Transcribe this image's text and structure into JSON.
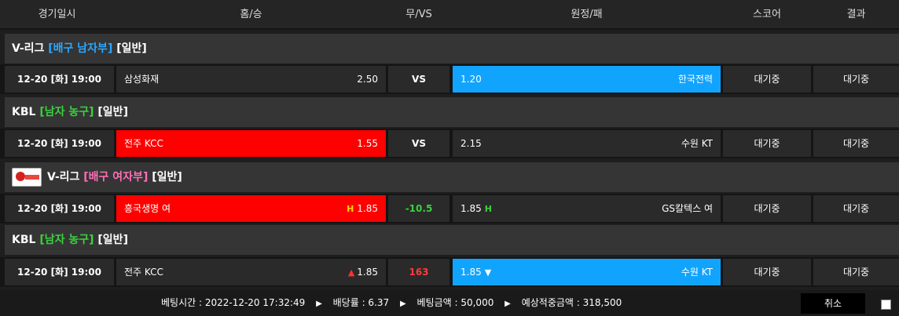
{
  "header": {
    "time": "경기일시",
    "home": "홈/승",
    "draw": "무/VS",
    "away": "원정/패",
    "score": "스코어",
    "result": "결과"
  },
  "groups": [
    {
      "league_main": "V-리그",
      "league_cat": "[배구 남자부]",
      "league_type": "[일반]",
      "game": {
        "time": "12-20 [화] 19:00",
        "home_team": "삼성화재",
        "home_odd": "2.50",
        "draw": "VS",
        "away_odd": "1.20",
        "away_team": "한국전력",
        "score": "대기중",
        "result": "대기중"
      }
    },
    {
      "league_main": "KBL",
      "league_cat": "[남자 농구]",
      "league_type": "[일반]",
      "game": {
        "time": "12-20 [화] 19:00",
        "home_team": "전주 KCC",
        "home_odd": "1.55",
        "draw": "VS",
        "away_odd": "2.15",
        "away_team": "수원 KT",
        "score": "대기중",
        "result": "대기중"
      }
    },
    {
      "league_main": "V-리그",
      "league_cat": "[배구 여자부]",
      "league_type": "[일반]",
      "game": {
        "time": "12-20 [화] 19:00",
        "home_team": "흥국생명 여",
        "home_marker": "H",
        "home_odd": "1.85",
        "draw": "-10.5",
        "away_odd": "1.85",
        "away_marker": "H",
        "away_team": "GS칼텍스 여",
        "score": "대기중",
        "result": "대기중"
      }
    },
    {
      "league_main": "KBL",
      "league_cat": "[남자 농구]",
      "league_type": "[일반]",
      "game": {
        "time": "12-20 [화] 19:00",
        "home_team": "전주 KCC",
        "home_arrow": "▲",
        "home_odd": "1.85",
        "draw": "163",
        "away_odd": "1.85",
        "away_arrow": "▼",
        "away_team": "수원 KT",
        "score": "대기중",
        "result": "대기중"
      }
    }
  ],
  "footer": {
    "bet_time": "베팅시간 : 2022-12-20 17:32:49",
    "rate": "배당률 : 6.37",
    "amount": "베팅금액 : 50,000",
    "expected": "예상적중금액 : 318,500",
    "sep": "▶",
    "cancel": "취소"
  },
  "colors": {
    "selected_red": "#ff0000",
    "selected_blue": "#11a4ff",
    "category_blue": "#2aa7ff",
    "category_green": "#39d23c",
    "category_pink": "#ff6fb5"
  }
}
